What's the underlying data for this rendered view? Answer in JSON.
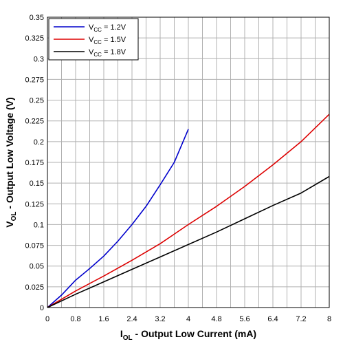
{
  "chart_data": {
    "type": "line",
    "title": "",
    "xlabel": {
      "main": "I",
      "sub": "OL",
      "rest": " - Output Low Current (mA)"
    },
    "ylabel": {
      "main": "V",
      "sub": "OL",
      "rest": " - Output Low Voltage (V)"
    },
    "xlim": [
      0,
      8
    ],
    "ylim": [
      0,
      0.35
    ],
    "x_ticks": [
      0,
      0.8,
      1.6,
      2.4,
      3.2,
      4,
      4.8,
      5.6,
      6.4,
      7.2,
      8
    ],
    "x_tick_labels": [
      "0",
      "0.8",
      "1.6",
      "2.4",
      "3.2",
      "4",
      "4.8",
      "5.6",
      "6.4",
      "7.2",
      "8"
    ],
    "y_ticks": [
      0,
      0.025,
      0.05,
      0.075,
      0.1,
      0.125,
      0.15,
      0.175,
      0.2,
      0.225,
      0.25,
      0.275,
      0.3,
      0.325,
      0.35
    ],
    "y_tick_labels": [
      "0",
      "0.025",
      "0.05",
      "0.075",
      "0.1",
      "0.125",
      "0.15",
      "0.175",
      "0.2",
      "0.225",
      "0.25",
      "0.275",
      "0.3",
      "0.325",
      "0.35"
    ],
    "x_grid_step": 0.4,
    "grid": true,
    "legend_position": "top-left",
    "series": [
      {
        "label": {
          "main": "V",
          "sub": "CC",
          "rest": " = 1.2V"
        },
        "color": "#0000cc",
        "x": [
          0,
          0.4,
          0.8,
          1.2,
          1.6,
          2.0,
          2.4,
          2.8,
          3.2,
          3.6,
          4.0
        ],
        "y": [
          0,
          0.015,
          0.033,
          0.047,
          0.062,
          0.08,
          0.1,
          0.122,
          0.148,
          0.175,
          0.215
        ]
      },
      {
        "label": {
          "main": "V",
          "sub": "CC",
          "rest": " = 1.5V"
        },
        "color": "#dd0000",
        "x": [
          0,
          0.8,
          1.6,
          2.4,
          3.2,
          4.0,
          4.8,
          5.6,
          6.4,
          7.2,
          8.0
        ],
        "y": [
          0,
          0.02,
          0.038,
          0.057,
          0.077,
          0.1,
          0.122,
          0.146,
          0.172,
          0.2,
          0.233
        ]
      },
      {
        "label": {
          "main": "V",
          "sub": "CC",
          "rest": " = 1.8V"
        },
        "color": "#000000",
        "x": [
          0,
          0.8,
          1.6,
          2.4,
          3.2,
          4.0,
          4.8,
          5.6,
          6.4,
          7.2,
          8.0
        ],
        "y": [
          0,
          0.016,
          0.031,
          0.046,
          0.061,
          0.076,
          0.091,
          0.107,
          0.123,
          0.138,
          0.158
        ]
      }
    ]
  }
}
